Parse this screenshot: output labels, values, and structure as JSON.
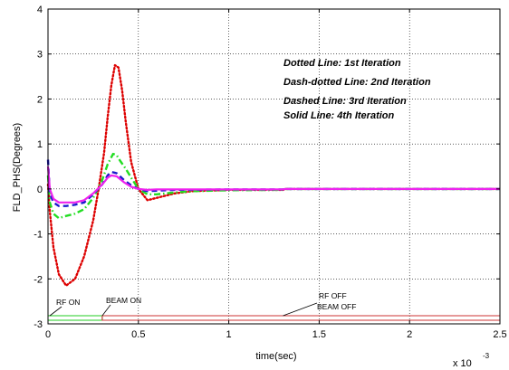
{
  "chart_data": {
    "type": "line",
    "xlabel": "time(sec)",
    "ylabel": "FLD_PHS(Degrees)",
    "x_multiplier_label": "x 10",
    "x_multiplier_exponent": "-3",
    "xlim": [
      0,
      2.5
    ],
    "ylim": [
      -3,
      4
    ],
    "xticks": [
      0,
      0.5,
      1,
      1.5,
      2,
      2.5
    ],
    "xtick_labels": [
      "0",
      "0.5",
      "1",
      "1.5",
      "2",
      "2.5"
    ],
    "yticks": [
      -3,
      -2,
      -1,
      0,
      1,
      2,
      3,
      4
    ],
    "ytick_labels": [
      "-3",
      "-2",
      "-1",
      "0",
      "1",
      "2",
      "3",
      "4"
    ],
    "grid": true,
    "legend_lines": [
      "Dotted Line: 1st Iteration",
      "Dash-dotted Line: 2nd Iteration",
      "Dashed Line: 3rd Iteration",
      "Solid Line: 4th Iteration"
    ],
    "series": [
      {
        "color": "#dd0000",
        "style": "dotted",
        "x": [
          0,
          0.01,
          0.03,
          0.06,
          0.1,
          0.15,
          0.2,
          0.25,
          0.28,
          0.31,
          0.33,
          0.35,
          0.37,
          0.39,
          0.41,
          0.43,
          0.46,
          0.5,
          0.55,
          0.6,
          0.7,
          0.8,
          1.0,
          1.3,
          1.31,
          1.5,
          2.0,
          2.5
        ],
        "y": [
          0.1,
          -0.5,
          -1.3,
          -1.9,
          -2.15,
          -2.0,
          -1.5,
          -0.7,
          0.0,
          0.8,
          1.6,
          2.3,
          2.75,
          2.7,
          2.2,
          1.5,
          0.6,
          0.0,
          -0.25,
          -0.2,
          -0.1,
          -0.05,
          -0.02,
          -0.02,
          0.0,
          0.0,
          0.0,
          0.0
        ]
      },
      {
        "color": "#22dd22",
        "style": "dashdot",
        "x": [
          0,
          0.01,
          0.03,
          0.06,
          0.1,
          0.15,
          0.2,
          0.25,
          0.3,
          0.33,
          0.36,
          0.38,
          0.4,
          0.43,
          0.46,
          0.5,
          0.55,
          0.6,
          0.7,
          0.8,
          1.0,
          1.3,
          1.31,
          1.5,
          2.0,
          2.5
        ],
        "y": [
          0.3,
          -0.3,
          -0.55,
          -0.65,
          -0.6,
          -0.55,
          -0.45,
          -0.2,
          0.2,
          0.55,
          0.78,
          0.75,
          0.62,
          0.45,
          0.25,
          0.0,
          -0.12,
          -0.12,
          -0.08,
          -0.05,
          -0.03,
          -0.02,
          0.0,
          0.0,
          0.0,
          0.0
        ]
      },
      {
        "color": "#1a1acc",
        "style": "dashed",
        "x": [
          0,
          0.01,
          0.03,
          0.06,
          0.1,
          0.15,
          0.2,
          0.25,
          0.3,
          0.33,
          0.35,
          0.38,
          0.42,
          0.46,
          0.5,
          0.55,
          0.6,
          0.7,
          1.0,
          1.3,
          1.31,
          1.5,
          2.0,
          2.5
        ],
        "y": [
          0.65,
          -0.1,
          -0.3,
          -0.38,
          -0.38,
          -0.35,
          -0.3,
          -0.12,
          0.1,
          0.3,
          0.38,
          0.35,
          0.2,
          0.08,
          0.0,
          -0.05,
          -0.04,
          -0.02,
          -0.01,
          -0.01,
          0.0,
          0.0,
          0.0,
          0.0
        ]
      },
      {
        "color": "#ee22ee",
        "style": "solid",
        "x": [
          0,
          0.01,
          0.03,
          0.06,
          0.1,
          0.15,
          0.2,
          0.25,
          0.3,
          0.33,
          0.35,
          0.38,
          0.42,
          0.46,
          0.5,
          0.55,
          0.6,
          1.0,
          1.3,
          1.31,
          1.5,
          2.0,
          2.5
        ],
        "y": [
          0.5,
          0.0,
          -0.22,
          -0.3,
          -0.3,
          -0.3,
          -0.25,
          -0.1,
          0.1,
          0.25,
          0.3,
          0.28,
          0.15,
          0.05,
          0.0,
          -0.02,
          -0.01,
          -0.01,
          -0.01,
          0.0,
          0.0,
          0.0,
          0.0
        ]
      }
    ],
    "events": [
      {
        "label": "RF ON",
        "x": 0.0
      },
      {
        "label": "BEAM ON",
        "x": 0.3
      },
      {
        "label": "RF OFF",
        "x": 1.3
      },
      {
        "label": "BEAM OFF",
        "x": 1.3
      }
    ],
    "timeline": [
      {
        "x0": 0.0,
        "x1": 0.3,
        "color": "#22cc22"
      },
      {
        "x0": 0.3,
        "x1": 2.5,
        "color": "#cc3333"
      }
    ]
  }
}
